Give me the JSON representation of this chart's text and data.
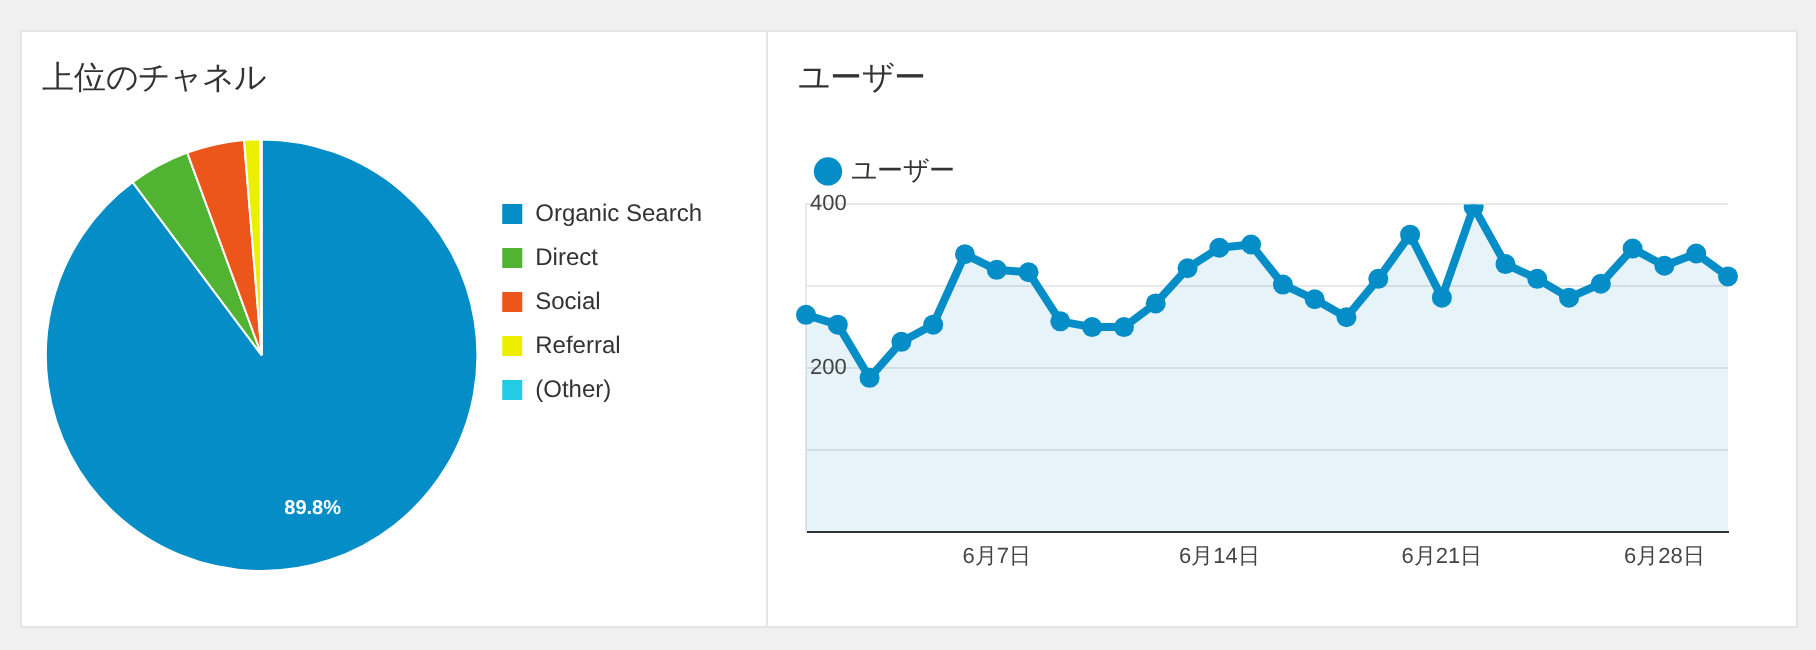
{
  "chart_data": [
    {
      "type": "pie",
      "title": "上位のチャネル",
      "categories": [
        "Organic Search",
        "Direct",
        "Social",
        "Referral",
        "(Other)"
      ],
      "values": [
        89.8,
        4.6,
        4.3,
        1.2,
        0.1
      ],
      "colors": [
        "#058dc7",
        "#50b432",
        "#ed561b",
        "#edef00",
        "#24cbe5"
      ],
      "value_labels": [
        "89.8%",
        null,
        null,
        null,
        null
      ],
      "legend": "right"
    },
    {
      "type": "area",
      "title": "ユーザー",
      "categories": [
        null,
        null,
        null,
        null,
        null,
        null,
        "6月7日",
        null,
        null,
        null,
        null,
        null,
        null,
        "6月14日",
        null,
        null,
        null,
        null,
        null,
        null,
        "6月21日",
        null,
        null,
        null,
        null,
        null,
        null,
        "6月28日",
        null,
        null
      ],
      "series": [
        {
          "name": "ユーザー",
          "color": "#058dc7",
          "values": [
            265,
            253,
            188,
            232,
            253,
            339,
            320,
            317,
            257,
            250,
            250,
            279,
            322,
            347,
            351,
            302,
            284,
            262,
            309,
            363,
            286,
            397,
            327,
            309,
            286,
            303,
            346,
            325,
            340,
            312
          ]
        }
      ],
      "ylim": [
        0,
        400
      ],
      "yticks": [
        {
          "value": 100,
          "label": null
        },
        200,
        {
          "value": 300,
          "label": null
        },
        400
      ],
      "grid": "y",
      "legend": "top left",
      "marker": "circle"
    }
  ]
}
